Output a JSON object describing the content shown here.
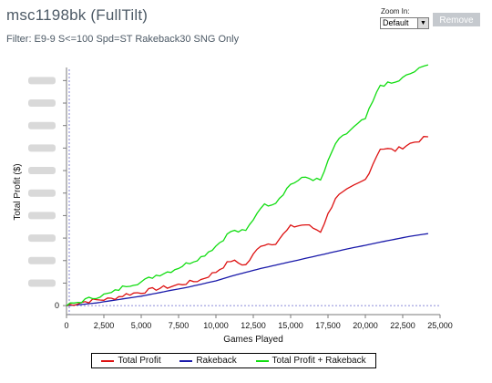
{
  "header": {
    "title": "msc1198bk (FullTilt)",
    "filter": "Filter: E9-9 S<=100 Spd=ST Rakeback30 SNG Only"
  },
  "zoom": {
    "label": "Zoom In:",
    "selected": "Default",
    "remove_label": "Remove"
  },
  "colors": {
    "total_profit": "#dd1111",
    "rakeback": "#1a1aaa",
    "total_plus_rakeback": "#11dd11"
  },
  "chart_data": {
    "type": "line",
    "xlabel": "Games Played",
    "ylabel": "Total Profit ($)",
    "xlim": [
      0,
      25000
    ],
    "ylim": [
      -0.4,
      10.5
    ],
    "x_ticks": [
      0,
      2500,
      5000,
      7500,
      10000,
      12500,
      15000,
      17500,
      20000,
      22500,
      25000
    ],
    "x_tick_labels": [
      "0",
      "2,500",
      "5,000",
      "7,500",
      "10,000",
      "12,500",
      "15,000",
      "17,500",
      "20,000",
      "22,500",
      "25,000"
    ],
    "y_tick_labels_visible": [
      "0"
    ],
    "y_tick_count": 11,
    "legend_position": "bottom",
    "grid": false,
    "x": [
      0,
      1000,
      2000,
      3000,
      4000,
      5000,
      6000,
      7000,
      8000,
      9000,
      10000,
      11000,
      12000,
      13000,
      14000,
      15000,
      16000,
      17000,
      18000,
      19000,
      20000,
      21000,
      22000,
      23000,
      24200
    ],
    "series": [
      {
        "name": "Total Profit",
        "values": [
          0,
          0.15,
          0.25,
          0.3,
          0.5,
          0.6,
          0.75,
          0.85,
          1.0,
          1.15,
          1.5,
          2.0,
          1.8,
          2.7,
          2.8,
          3.5,
          3.6,
          3.3,
          4.8,
          5.2,
          5.6,
          7.0,
          6.9,
          7.2,
          7.5
        ]
      },
      {
        "name": "Rakeback",
        "values": [
          0,
          0.05,
          0.12,
          0.22,
          0.32,
          0.42,
          0.55,
          0.68,
          0.8,
          0.95,
          1.1,
          1.3,
          1.48,
          1.65,
          1.8,
          1.95,
          2.1,
          2.25,
          2.4,
          2.55,
          2.68,
          2.82,
          2.95,
          3.08,
          3.2
        ]
      },
      {
        "name": "Total Profit + Rakeback",
        "values": [
          0,
          0.2,
          0.4,
          0.55,
          0.9,
          1.05,
          1.35,
          1.55,
          1.85,
          2.15,
          2.65,
          3.3,
          3.3,
          4.4,
          4.6,
          5.4,
          5.7,
          5.55,
          7.2,
          7.8,
          8.3,
          9.8,
          9.9,
          10.3,
          10.7
        ]
      }
    ]
  }
}
